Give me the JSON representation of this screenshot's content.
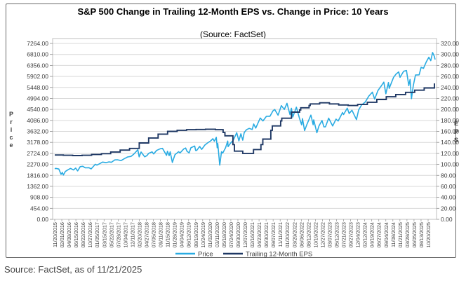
{
  "source_note": "Source: FactSet, as of 11/21/2025",
  "chart_data": {
    "type": "line",
    "title": "S&P 500 Change in Trailing 12-Month EPS vs. Change in Price: 10 Years",
    "subtitle": "(Source: FactSet)",
    "grid": true,
    "legend_position": "bottom",
    "colors": {
      "price": "#29ABE2",
      "eps": "#1F3864",
      "gridline": "#D9D9D9",
      "plot_border": "#BFBFBF",
      "axis_text": "#404040",
      "tick": "#8C8C8C"
    },
    "left_axis": {
      "label": "Price",
      "min": 0,
      "max": 7264,
      "step": 454
    },
    "right_axis": {
      "label": "EPS",
      "min": 0,
      "max": 320,
      "step": 20
    },
    "x_tick_labels": [
      "11/20/2015",
      "02/01/2016",
      "04/08/2016",
      "06/15/2016",
      "08/22/2016",
      "10/27/2016",
      "01/05/2017",
      "03/15/2017",
      "05/22/2017",
      "07/28/2017",
      "10/04/2017",
      "12/11/2017",
      "02/20/2018",
      "04/27/2018",
      "07/05/2018",
      "09/11/2018",
      "11/15/2018",
      "01/28/2019",
      "04/04/2019",
      "06/12/2019",
      "08/19/2019",
      "10/24/2019",
      "01/02/2020",
      "03/11/2020",
      "05/18/2020",
      "07/24/2020",
      "09/30/2020",
      "12/07/2020",
      "02/16/2021",
      "04/23/2021",
      "06/30/2021",
      "09/07/2021",
      "11/11/2021",
      "01/20/2022",
      "03/29/2022",
      "06/06/2022",
      "08/12/2022",
      "10/19/2022",
      "12/27/2022",
      "03/07/2023",
      "05/12/2023",
      "07/21/2023",
      "09/27/2023",
      "12/04/2023",
      "02/12/2024",
      "04/19/2024",
      "06/27/2024",
      "09/04/2024",
      "11/08/2024",
      "01/21/2025",
      "03/28/2025",
      "06/05/2025",
      "08/13/2025",
      "10/20/2025"
    ],
    "x_range": {
      "start": "2015-11-20",
      "end": "2025-11-21"
    },
    "series": [
      {
        "name": "Price",
        "axis": "left",
        "style": "line",
        "color": "#29ABE2",
        "points": [
          [
            "2015-11-20",
            2089
          ],
          [
            "2015-12-01",
            2103
          ],
          [
            "2015-12-29",
            2078
          ],
          [
            "2016-01-20",
            1859
          ],
          [
            "2016-02-01",
            1940
          ],
          [
            "2016-02-11",
            1829
          ],
          [
            "2016-03-01",
            1978
          ],
          [
            "2016-03-31",
            2060
          ],
          [
            "2016-04-20",
            2102
          ],
          [
            "2016-05-19",
            2040
          ],
          [
            "2016-06-08",
            2119
          ],
          [
            "2016-06-27",
            2001
          ],
          [
            "2016-07-22",
            2175
          ],
          [
            "2016-08-15",
            2190
          ],
          [
            "2016-09-09",
            2128
          ],
          [
            "2016-10-13",
            2133
          ],
          [
            "2016-11-04",
            2085
          ],
          [
            "2016-12-13",
            2271
          ],
          [
            "2016-12-30",
            2239
          ],
          [
            "2017-01-25",
            2298
          ],
          [
            "2017-02-21",
            2365
          ],
          [
            "2017-03-27",
            2342
          ],
          [
            "2017-04-24",
            2374
          ],
          [
            "2017-05-17",
            2357
          ],
          [
            "2017-06-19",
            2453
          ],
          [
            "2017-07-14",
            2459
          ],
          [
            "2017-08-18",
            2426
          ],
          [
            "2017-09-20",
            2508
          ],
          [
            "2017-10-20",
            2575
          ],
          [
            "2017-11-21",
            2599
          ],
          [
            "2017-12-18",
            2690
          ],
          [
            "2018-01-26",
            2873
          ],
          [
            "2018-02-08",
            2581
          ],
          [
            "2018-02-26",
            2780
          ],
          [
            "2018-04-02",
            2582
          ],
          [
            "2018-04-24",
            2635
          ],
          [
            "2018-05-10",
            2723
          ],
          [
            "2018-06-12",
            2786
          ],
          [
            "2018-06-27",
            2700
          ],
          [
            "2018-07-25",
            2846
          ],
          [
            "2018-08-29",
            2914
          ],
          [
            "2018-09-20",
            2931
          ],
          [
            "2018-10-10",
            2785
          ],
          [
            "2018-10-29",
            2641
          ],
          [
            "2018-11-07",
            2814
          ],
          [
            "2018-11-23",
            2632
          ],
          [
            "2018-12-03",
            2790
          ],
          [
            "2018-12-24",
            2351
          ],
          [
            "2019-01-18",
            2671
          ],
          [
            "2019-02-22",
            2793
          ],
          [
            "2019-03-08",
            2743
          ],
          [
            "2019-04-12",
            2907
          ],
          [
            "2019-04-30",
            2946
          ],
          [
            "2019-05-13",
            2812
          ],
          [
            "2019-06-03",
            2744
          ],
          [
            "2019-06-20",
            2954
          ],
          [
            "2019-07-26",
            3026
          ],
          [
            "2019-08-05",
            2845
          ],
          [
            "2019-08-15",
            2848
          ],
          [
            "2019-09-12",
            3010
          ],
          [
            "2019-10-02",
            2888
          ],
          [
            "2019-11-01",
            3067
          ],
          [
            "2019-11-27",
            3154
          ],
          [
            "2019-12-27",
            3240
          ],
          [
            "2020-01-17",
            3330
          ],
          [
            "2020-01-31",
            3226
          ],
          [
            "2020-02-19",
            3386
          ],
          [
            "2020-02-28",
            2954
          ],
          [
            "2020-03-04",
            3130
          ],
          [
            "2020-03-23",
            2237
          ],
          [
            "2020-04-09",
            2790
          ],
          [
            "2020-04-21",
            2737
          ],
          [
            "2020-05-18",
            2954
          ],
          [
            "2020-06-08",
            3232
          ],
          [
            "2020-06-11",
            3002
          ],
          [
            "2020-07-02",
            3130
          ],
          [
            "2020-07-31",
            3271
          ],
          [
            "2020-09-02",
            3581
          ],
          [
            "2020-09-23",
            3237
          ],
          [
            "2020-10-12",
            3534
          ],
          [
            "2020-10-30",
            3270
          ],
          [
            "2020-11-13",
            3585
          ],
          [
            "2020-12-04",
            3699
          ],
          [
            "2020-12-31",
            3756
          ],
          [
            "2021-01-29",
            3714
          ],
          [
            "2021-02-12",
            3935
          ],
          [
            "2021-03-04",
            3768
          ],
          [
            "2021-04-16",
            4185
          ],
          [
            "2021-05-12",
            4063
          ],
          [
            "2021-06-14",
            4255
          ],
          [
            "2021-07-19",
            4258
          ],
          [
            "2021-08-16",
            4480
          ],
          [
            "2021-09-02",
            4537
          ],
          [
            "2021-10-04",
            4300
          ],
          [
            "2021-11-05",
            4698
          ],
          [
            "2021-12-03",
            4538
          ],
          [
            "2021-12-29",
            4793
          ],
          [
            "2022-01-27",
            4326
          ],
          [
            "2022-02-09",
            4587
          ],
          [
            "2022-02-23",
            4225
          ],
          [
            "2022-03-29",
            4631
          ],
          [
            "2022-04-27",
            4184
          ],
          [
            "2022-05-19",
            3901
          ],
          [
            "2022-05-27",
            4158
          ],
          [
            "2022-06-16",
            3667
          ],
          [
            "2022-07-07",
            3903
          ],
          [
            "2022-08-16",
            4305
          ],
          [
            "2022-09-06",
            3908
          ],
          [
            "2022-09-12",
            4110
          ],
          [
            "2022-10-12",
            3577
          ],
          [
            "2022-11-01",
            3856
          ],
          [
            "2022-11-30",
            4080
          ],
          [
            "2022-12-19",
            3818
          ],
          [
            "2023-01-03",
            3824
          ],
          [
            "2023-02-02",
            4180
          ],
          [
            "2023-03-13",
            3856
          ],
          [
            "2023-04-14",
            4138
          ],
          [
            "2023-05-04",
            4061
          ],
          [
            "2023-06-16",
            4410
          ],
          [
            "2023-06-26",
            4329
          ],
          [
            "2023-07-31",
            4589
          ],
          [
            "2023-08-18",
            4370
          ],
          [
            "2023-09-14",
            4505
          ],
          [
            "2023-10-27",
            4117
          ],
          [
            "2023-11-17",
            4514
          ],
          [
            "2023-12-15",
            4719
          ],
          [
            "2024-01-19",
            4840
          ],
          [
            "2024-02-23",
            5089
          ],
          [
            "2024-03-28",
            5254
          ],
          [
            "2024-04-19",
            4967
          ],
          [
            "2024-05-21",
            5321
          ],
          [
            "2024-06-18",
            5487
          ],
          [
            "2024-07-16",
            5667
          ],
          [
            "2024-08-05",
            5186
          ],
          [
            "2024-08-30",
            5648
          ],
          [
            "2024-09-06",
            5408
          ],
          [
            "2024-10-18",
            5865
          ],
          [
            "2024-11-11",
            6001
          ],
          [
            "2024-12-06",
            6090
          ],
          [
            "2024-12-19",
            5867
          ],
          [
            "2025-01-23",
            6119
          ],
          [
            "2025-02-19",
            6144
          ],
          [
            "2025-03-13",
            5522
          ],
          [
            "2025-03-25",
            5777
          ],
          [
            "2025-04-08",
            4983
          ],
          [
            "2025-04-25",
            5525
          ],
          [
            "2025-05-16",
            5958
          ],
          [
            "2025-06-20",
            5968
          ],
          [
            "2025-07-10",
            6280
          ],
          [
            "2025-08-01",
            6238
          ],
          [
            "2025-08-28",
            6502
          ],
          [
            "2025-09-22",
            6693
          ],
          [
            "2025-10-10",
            6553
          ],
          [
            "2025-10-28",
            6891
          ],
          [
            "2025-11-13",
            6737
          ],
          [
            "2025-11-21",
            6602
          ]
        ]
      },
      {
        "name": "Trailing 12-Month EPS",
        "axis": "right",
        "style": "step",
        "color": "#1F3864",
        "points": [
          [
            "2015-11-20",
            117
          ],
          [
            "2016-02-10",
            116.5
          ],
          [
            "2016-05-10",
            116
          ],
          [
            "2016-08-09",
            116.5
          ],
          [
            "2016-11-08",
            118
          ],
          [
            "2017-02-10",
            119.5
          ],
          [
            "2017-05-10",
            122.5
          ],
          [
            "2017-08-09",
            126
          ],
          [
            "2017-11-08",
            129
          ],
          [
            "2018-02-09",
            139
          ],
          [
            "2018-05-10",
            148
          ],
          [
            "2018-08-09",
            155
          ],
          [
            "2018-11-08",
            160
          ],
          [
            "2019-02-08",
            162
          ],
          [
            "2019-05-10",
            163
          ],
          [
            "2019-08-09",
            163.5
          ],
          [
            "2019-11-08",
            164
          ],
          [
            "2020-02-10",
            163
          ],
          [
            "2020-04-24",
            158
          ],
          [
            "2020-05-12",
            152
          ],
          [
            "2020-07-28",
            136
          ],
          [
            "2020-08-11",
            124
          ],
          [
            "2020-10-30",
            120
          ],
          [
            "2021-02-10",
            127
          ],
          [
            "2021-04-23",
            136
          ],
          [
            "2021-05-11",
            146
          ],
          [
            "2021-07-27",
            162
          ],
          [
            "2021-08-10",
            170
          ],
          [
            "2021-10-29",
            179
          ],
          [
            "2021-11-09",
            184
          ],
          [
            "2022-02-10",
            195
          ],
          [
            "2022-04-29",
            199
          ],
          [
            "2022-05-10",
            203
          ],
          [
            "2022-07-29",
            207
          ],
          [
            "2022-08-09",
            210
          ],
          [
            "2022-11-08",
            212
          ],
          [
            "2023-02-10",
            210
          ],
          [
            "2023-05-10",
            208
          ],
          [
            "2023-08-09",
            207
          ],
          [
            "2023-11-08",
            209
          ],
          [
            "2024-02-09",
            213
          ],
          [
            "2024-05-10",
            218
          ],
          [
            "2024-08-09",
            223
          ],
          [
            "2024-11-08",
            227
          ],
          [
            "2025-02-10",
            231
          ],
          [
            "2025-05-09",
            235
          ],
          [
            "2025-08-08",
            239
          ],
          [
            "2025-11-14",
            246
          ]
        ]
      }
    ]
  }
}
